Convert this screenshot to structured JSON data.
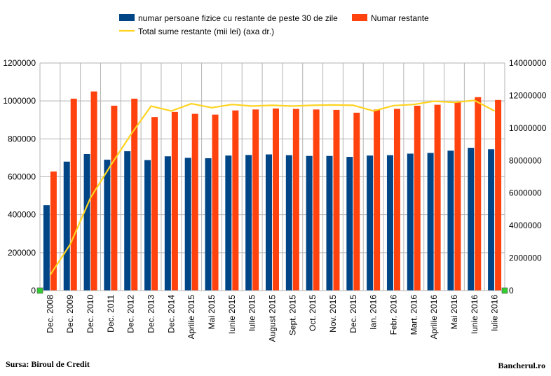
{
  "chart_data": {
    "type": "bar",
    "categories": [
      "Dec. 2008",
      "Dec. 2009",
      "Dec. 2010",
      "Dec. 2011",
      "Dec. 2012",
      "Dec. 2013",
      "Dec. 2014",
      "Aprilie 2015",
      "Mai 2015",
      "Iunie 2015",
      "Iulie 2015",
      "August 2015",
      "Sept. 2015",
      "Oct. 2015",
      "Nov. 2015",
      "Dec. 2015",
      "Ian. 2016",
      "Febr. 2016",
      "Mart. 2016",
      "Aprilie 2016",
      "Mai 2016",
      "Iunie 2016",
      "Iulie 2016"
    ],
    "series": [
      {
        "name": "numar persoane fizice cu restante de peste 30 de zile",
        "type": "bar",
        "axis": "left",
        "color": "#004586",
        "values": [
          450000,
          680000,
          720000,
          690000,
          735000,
          688000,
          708000,
          700000,
          698000,
          712000,
          715000,
          718000,
          714000,
          710000,
          710000,
          705000,
          712000,
          714000,
          722000,
          726000,
          738000,
          753000,
          745000
        ]
      },
      {
        "name": "Numar restante",
        "type": "bar",
        "axis": "left",
        "color": "#ff420e",
        "values": [
          628000,
          1012000,
          1050000,
          975000,
          1012000,
          915000,
          942000,
          932000,
          928000,
          950000,
          955000,
          960000,
          958000,
          955000,
          953000,
          938000,
          955000,
          958000,
          975000,
          980000,
          995000,
          1020000,
          1005000
        ]
      },
      {
        "name": "Total sume restante (mii lei) (axa dr.)",
        "type": "line",
        "axis": "right",
        "color": "#ffd320",
        "values": [
          950000,
          2850000,
          5700000,
          7700000,
          9600000,
          11350000,
          11050000,
          11500000,
          11250000,
          11450000,
          11350000,
          11400000,
          11350000,
          11400000,
          11420000,
          11400000,
          11050000,
          11380000,
          11450000,
          11650000,
          11580000,
          11700000,
          11050000
        ]
      }
    ],
    "ylim_left": [
      0,
      1200000
    ],
    "yticks_left": [
      "0",
      "200000",
      "400000",
      "600000",
      "800000",
      "1000000",
      "1200000"
    ],
    "ylim_right": [
      0,
      14000000
    ],
    "yticks_right": [
      "0",
      "2000000",
      "4000000",
      "6000000",
      "8000000",
      "10000000",
      "12000000",
      "14000000"
    ],
    "grid": true,
    "legend_position": "top",
    "source": "Sursa: Biroul de Credit",
    "brand": "Bancherul.ro"
  }
}
